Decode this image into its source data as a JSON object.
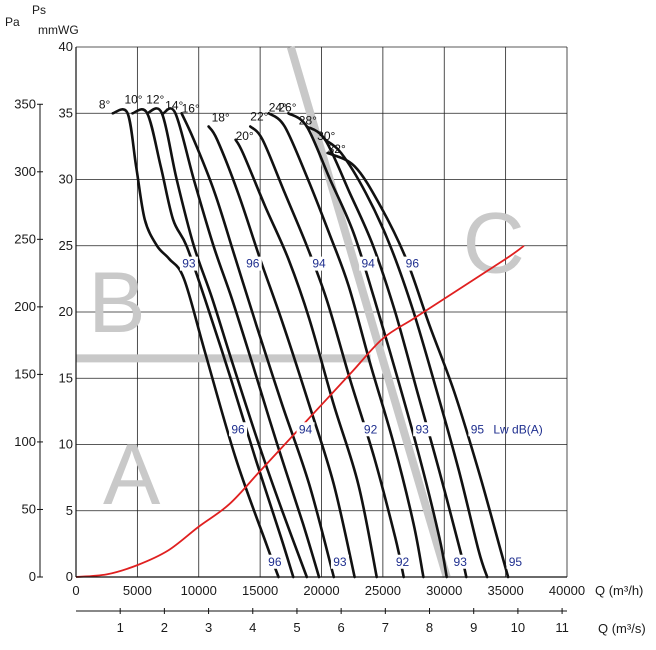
{
  "chart_data": {
    "type": "line",
    "title": "",
    "axes": {
      "left_pa": {
        "unit": "Pa",
        "ticks": [
          0,
          50,
          100,
          150,
          200,
          250,
          300,
          350
        ]
      },
      "left_mmwg": {
        "unit_top": "Ps",
        "unit": "mmWG",
        "min": 0,
        "max": 40,
        "ticks": [
          0,
          5,
          10,
          15,
          20,
          25,
          30,
          35,
          40
        ]
      },
      "bottom_m3h": {
        "label": "Q (m³/h)",
        "min": 0,
        "max": 40000,
        "ticks": [
          0,
          5000,
          10000,
          15000,
          20000,
          25000,
          30000,
          35000,
          40000
        ]
      },
      "bottom_m3s": {
        "label": "Q (m³/s)",
        "ticks": [
          1,
          2,
          3,
          4,
          5,
          6,
          7,
          8,
          9,
          10,
          11
        ]
      }
    },
    "grid": true,
    "series": [
      {
        "name": "8°",
        "label": "8°",
        "points": [
          [
            3000,
            35
          ],
          [
            4200,
            35
          ],
          [
            4900,
            31
          ],
          [
            5600,
            27
          ],
          [
            6600,
            25
          ],
          [
            7600,
            24
          ],
          [
            8800,
            22.5
          ],
          [
            10500,
            17
          ],
          [
            13000,
            9
          ],
          [
            15500,
            2.5
          ],
          [
            16500,
            0
          ]
        ]
      },
      {
        "name": "10°",
        "label": "10°",
        "points": [
          [
            4600,
            35
          ],
          [
            5800,
            35
          ],
          [
            6900,
            31
          ],
          [
            7900,
            27
          ],
          [
            9000,
            25
          ],
          [
            10500,
            21
          ],
          [
            12600,
            15
          ],
          [
            14600,
            9
          ],
          [
            16700,
            3
          ],
          [
            17700,
            0
          ]
        ]
      },
      {
        "name": "12°",
        "label": "12°",
        "points": [
          [
            5800,
            35
          ],
          [
            7000,
            35
          ],
          [
            8200,
            30
          ],
          [
            9600,
            25
          ],
          [
            11100,
            21
          ],
          [
            12800,
            16
          ],
          [
            14900,
            10
          ],
          [
            16800,
            5
          ],
          [
            18800,
            0
          ]
        ]
      },
      {
        "name": "14°",
        "label": "14°",
        "points": [
          [
            7100,
            35
          ],
          [
            8100,
            35
          ],
          [
            9600,
            30
          ],
          [
            11200,
            25
          ],
          [
            12700,
            21
          ],
          [
            14400,
            16
          ],
          [
            16400,
            10
          ],
          [
            18500,
            4
          ],
          [
            19800,
            0
          ]
        ]
      },
      {
        "name": "16°",
        "label": "16°",
        "points": [
          [
            8600,
            35
          ],
          [
            9600,
            33
          ],
          [
            11300,
            29
          ],
          [
            13000,
            24
          ],
          [
            14700,
            19
          ],
          [
            16800,
            13
          ],
          [
            19000,
            7
          ],
          [
            21000,
            0
          ]
        ]
      },
      {
        "name": "18°",
        "label": "18°",
        "points": [
          [
            10800,
            34
          ],
          [
            11500,
            33
          ],
          [
            13200,
            29
          ],
          [
            15000,
            24
          ],
          [
            16900,
            19
          ],
          [
            19000,
            13
          ],
          [
            21000,
            7
          ],
          [
            22700,
            0
          ]
        ]
      },
      {
        "name": "20°",
        "label": "20°",
        "points": [
          [
            13000,
            33
          ],
          [
            13600,
            32
          ],
          [
            15400,
            28
          ],
          [
            17300,
            24
          ],
          [
            19000,
            19.5
          ],
          [
            21000,
            13
          ],
          [
            23000,
            7
          ],
          [
            24500,
            0
          ]
        ]
      },
      {
        "name": "22°",
        "label": "22°",
        "points": [
          [
            14200,
            34
          ],
          [
            15200,
            33
          ],
          [
            17000,
            29
          ],
          [
            18800,
            25
          ],
          [
            20400,
            21
          ],
          [
            22300,
            15
          ],
          [
            24300,
            9
          ],
          [
            26000,
            3
          ],
          [
            26700,
            0
          ]
        ]
      },
      {
        "name": "24°",
        "label": "24°",
        "points": [
          [
            15700,
            35
          ],
          [
            17000,
            34
          ],
          [
            18900,
            30
          ],
          [
            20600,
            26
          ],
          [
            22200,
            22
          ],
          [
            24000,
            16
          ],
          [
            25900,
            10
          ],
          [
            27500,
            4
          ],
          [
            28300,
            0
          ]
        ]
      },
      {
        "name": "26°",
        "label": "26°",
        "points": [
          [
            17300,
            35
          ],
          [
            18800,
            34
          ],
          [
            20700,
            30
          ],
          [
            22600,
            26
          ],
          [
            24300,
            21
          ],
          [
            26200,
            15
          ],
          [
            28000,
            9
          ],
          [
            29600,
            3
          ],
          [
            30200,
            0
          ]
        ]
      },
      {
        "name": "28°",
        "label": "28°",
        "points": [
          [
            18800,
            34
          ],
          [
            20300,
            33
          ],
          [
            22300,
            29
          ],
          [
            24200,
            25
          ],
          [
            26000,
            20
          ],
          [
            27800,
            14
          ],
          [
            29600,
            8
          ],
          [
            31300,
            2
          ],
          [
            31800,
            0
          ]
        ]
      },
      {
        "name": "30°",
        "label": "30°",
        "points": [
          [
            20300,
            33
          ],
          [
            21600,
            32
          ],
          [
            23600,
            29
          ],
          [
            25600,
            25
          ],
          [
            27500,
            20
          ],
          [
            29400,
            14
          ],
          [
            31200,
            8
          ],
          [
            32800,
            2
          ],
          [
            33500,
            0
          ]
        ]
      },
      {
        "name": "32°",
        "label": "32°",
        "points": [
          [
            20500,
            32
          ],
          [
            22700,
            31
          ],
          [
            24800,
            28
          ],
          [
            26900,
            24
          ],
          [
            28800,
            19
          ],
          [
            30800,
            14
          ],
          [
            32800,
            8
          ],
          [
            34600,
            2
          ],
          [
            35200,
            0
          ]
        ]
      }
    ],
    "system_curve": {
      "name": "system",
      "color": "#e02020",
      "points": [
        [
          0,
          0
        ],
        [
          2500,
          0.2
        ],
        [
          5000,
          0.9
        ],
        [
          7500,
          2
        ],
        [
          10000,
          3.8
        ],
        [
          12500,
          5.5
        ],
        [
          15000,
          8
        ],
        [
          17500,
          10.5
        ],
        [
          20000,
          13
        ],
        [
          22500,
          15.5
        ],
        [
          25000,
          18
        ],
        [
          27500,
          19.5
        ],
        [
          30000,
          21
        ],
        [
          35000,
          24
        ],
        [
          36500,
          25
        ]
      ]
    },
    "zones": [
      {
        "letter": "A",
        "color": "#c8c8c8"
      },
      {
        "letter": "B",
        "color": "#c8c8c8"
      },
      {
        "letter": "C",
        "color": "#c8c8c8"
      }
    ],
    "sound_labels": [
      {
        "text": "93",
        "x": 9200,
        "y": 23.5
      },
      {
        "text": "96",
        "x": 14400,
        "y": 23.5
      },
      {
        "text": "94",
        "x": 19800,
        "y": 23.5
      },
      {
        "text": "94",
        "x": 23800,
        "y": 23.5
      },
      {
        "text": "96",
        "x": 27400,
        "y": 23.5
      },
      {
        "text": "96",
        "x": 13200,
        "y": 11
      },
      {
        "text": "94",
        "x": 18700,
        "y": 11
      },
      {
        "text": "92",
        "x": 24000,
        "y": 11
      },
      {
        "text": "93",
        "x": 28200,
        "y": 11
      },
      {
        "text": "95",
        "x": 32700,
        "y": 11
      },
      {
        "text": "96",
        "x": 16200,
        "y": 1
      },
      {
        "text": "93",
        "x": 21500,
        "y": 1
      },
      {
        "text": "92",
        "x": 26600,
        "y": 1
      },
      {
        "text": "93",
        "x": 31300,
        "y": 1
      },
      {
        "text": "95",
        "x": 35800,
        "y": 1
      }
    ],
    "lwdb_label": "Lw dB(A)"
  }
}
